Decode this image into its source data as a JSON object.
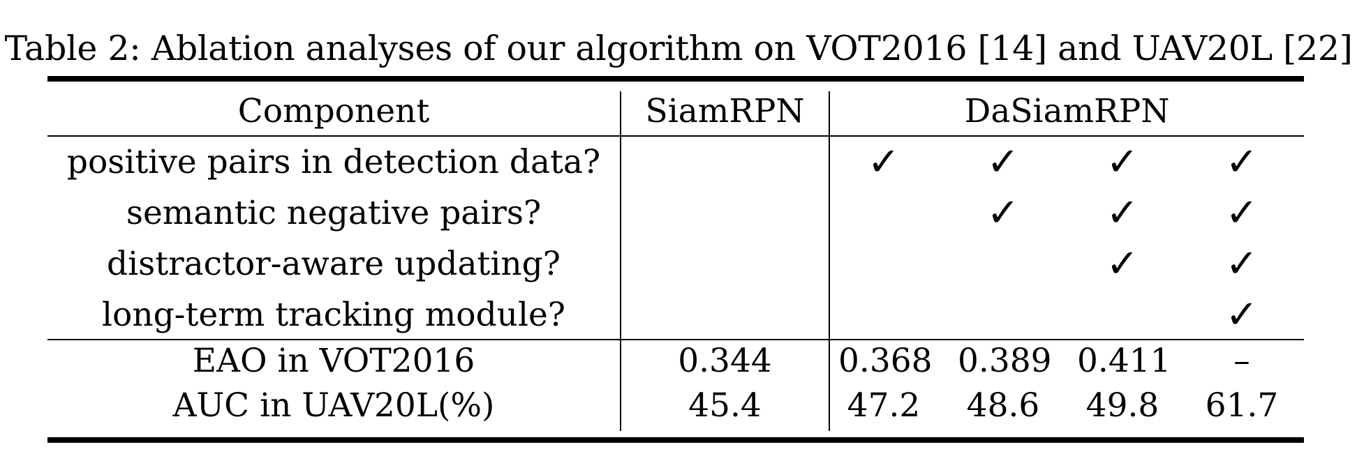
{
  "caption": "Table 2: Ablation analyses of our algorithm on VOT2016 [14] and UAV20L [22]",
  "header": {
    "component": "Component",
    "siamrpn": "SiamRPN",
    "dasiamrpn": "DaSiamRPN"
  },
  "components": [
    {
      "label": "positive pairs in detection data?",
      "checks": [
        true,
        true,
        true,
        true
      ]
    },
    {
      "label": "semantic negative pairs?",
      "checks": [
        false,
        true,
        true,
        true
      ]
    },
    {
      "label": "distractor-aware updating?",
      "checks": [
        false,
        false,
        true,
        true
      ]
    },
    {
      "label": "long-term tracking module?",
      "checks": [
        false,
        false,
        false,
        true
      ]
    }
  ],
  "check_glyph": "✓",
  "metrics": [
    {
      "label": "EAO in VOT2016",
      "siamrpn": "0.344",
      "dasiamrpn": [
        "0.368",
        "0.389",
        "0.411",
        "–"
      ]
    },
    {
      "label": "AUC in UAV20L(%)",
      "siamrpn": "45.4",
      "dasiamrpn": [
        "47.2",
        "48.6",
        "49.8",
        "61.7"
      ]
    }
  ]
}
